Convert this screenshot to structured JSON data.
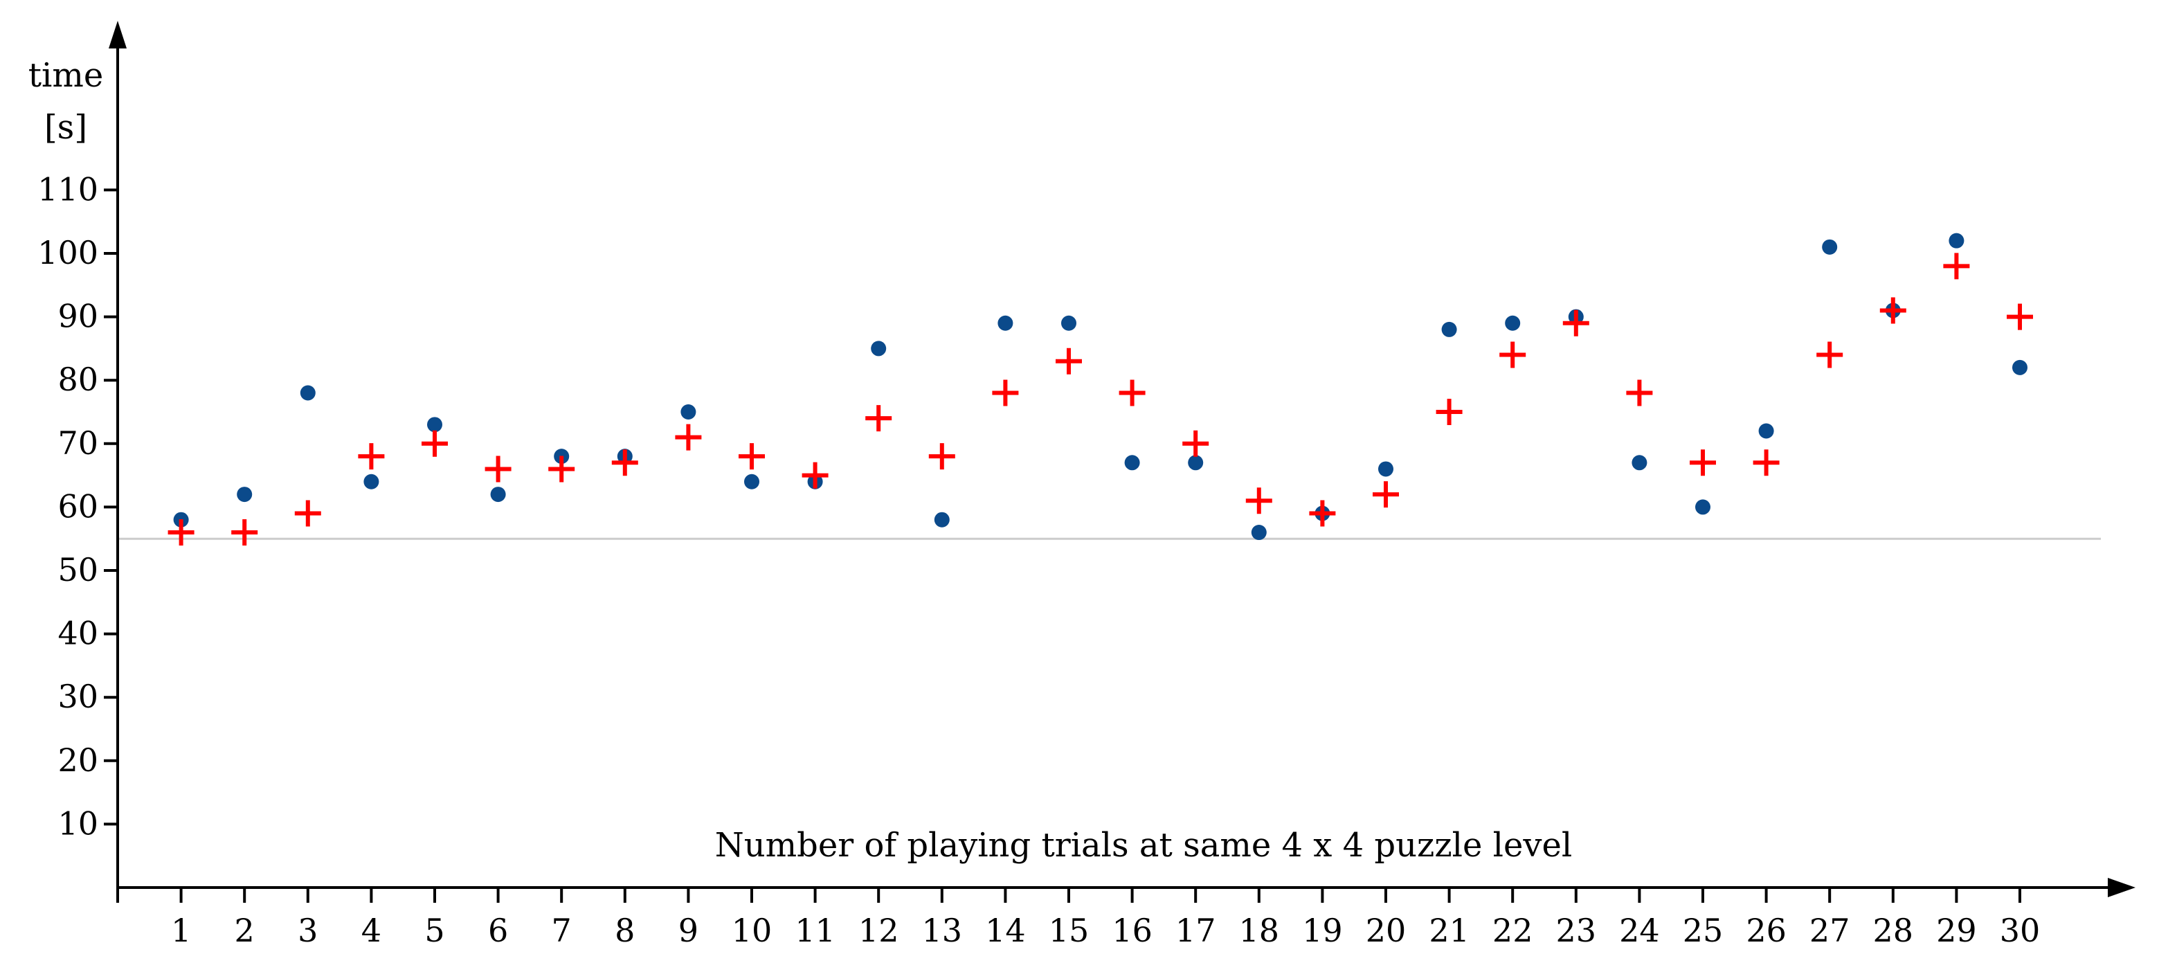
{
  "chart_data": {
    "type": "scatter",
    "title": "",
    "xlabel": "Number of playing trials at same 4 x 4 puzzle level",
    "ylabel_line1": "time",
    "ylabel_line2": "[s]",
    "x": [
      1,
      2,
      3,
      4,
      5,
      6,
      7,
      8,
      9,
      10,
      11,
      12,
      13,
      14,
      15,
      16,
      17,
      18,
      19,
      20,
      21,
      22,
      23,
      24,
      25,
      26,
      27,
      28,
      29,
      30
    ],
    "x_tick_labels": [
      "1",
      "2",
      "3",
      "4",
      "5",
      "6",
      "7",
      "8",
      "9",
      "10",
      "11",
      "12",
      "13",
      "14",
      "15",
      "16",
      "17",
      "18",
      "19",
      "20",
      "21",
      "22",
      "23",
      "24",
      "25",
      "26",
      "27",
      "28",
      "29",
      "30"
    ],
    "y_tick_values": [
      10,
      20,
      30,
      40,
      50,
      60,
      70,
      80,
      90,
      100,
      110
    ],
    "y_tick_labels": [
      "10",
      "20",
      "30",
      "40",
      "50",
      "60",
      "70",
      "80",
      "90",
      "100",
      "110"
    ],
    "xlim": [
      0,
      32
    ],
    "ylim": [
      0,
      135
    ],
    "series": [
      {
        "marker": "circle",
        "color": "#0b4a8b",
        "values": [
          58,
          62,
          78,
          64,
          73,
          62,
          68,
          68,
          75,
          64,
          64,
          85,
          58,
          89,
          89,
          67,
          67,
          56,
          59,
          66,
          88,
          89,
          90,
          67,
          60,
          72,
          101,
          91,
          102,
          82
        ]
      },
      {
        "marker": "plus",
        "color": "#ff0000",
        "values": [
          56,
          56,
          59,
          68,
          70,
          66,
          66,
          67,
          71,
          68,
          65,
          74,
          68,
          78,
          83,
          78,
          70,
          61,
          59,
          62,
          75,
          84,
          89,
          78,
          67,
          67,
          84,
          91,
          98,
          90
        ]
      }
    ],
    "reference_line": {
      "y": 55,
      "color": "#cccccc"
    },
    "grid": false
  }
}
